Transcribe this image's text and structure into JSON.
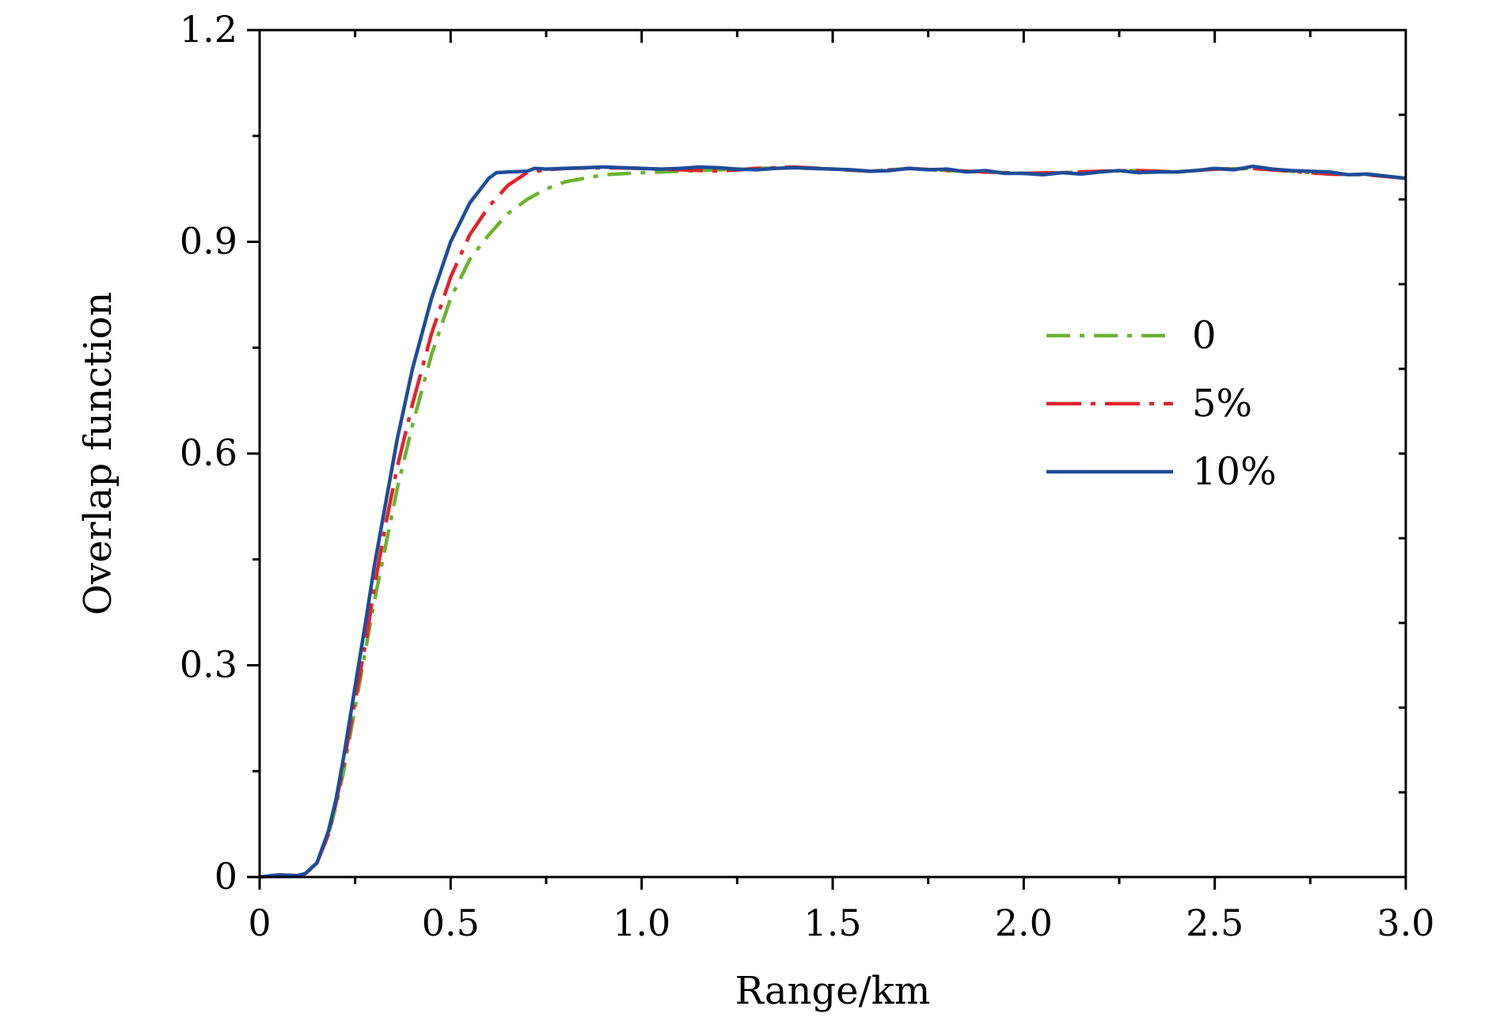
{
  "chart_data": {
    "type": "line",
    "xlabel": "Range/km",
    "ylabel": "Overlap function",
    "xlim": [
      0,
      3.0
    ],
    "ylim": [
      0,
      1.2
    ],
    "xticks": [
      "0",
      "0.5",
      "1.0",
      "1.5",
      "2.0",
      "2.5",
      "3.0"
    ],
    "yticks": [
      "0",
      "0.3",
      "0.6",
      "0.9",
      "1.2"
    ],
    "grid": false,
    "legend_position": "center-right",
    "series": [
      {
        "name": "0",
        "color": "#6ab42d",
        "dash": "dash-dot",
        "x": [
          0.0,
          0.05,
          0.1,
          0.12,
          0.15,
          0.18,
          0.2,
          0.22,
          0.25,
          0.28,
          0.3,
          0.33,
          0.36,
          0.4,
          0.45,
          0.5,
          0.55,
          0.6,
          0.65,
          0.7,
          0.75,
          0.8,
          0.85,
          0.9,
          1.0,
          1.1,
          1.2,
          1.3,
          1.4,
          1.5,
          1.6,
          1.7,
          1.8,
          1.9,
          2.0,
          2.1,
          2.2,
          2.3,
          2.4,
          2.5,
          2.6,
          2.7,
          2.8,
          2.9,
          3.0
        ],
        "y": [
          0.0,
          0.003,
          0.002,
          0.005,
          0.02,
          0.06,
          0.1,
          0.15,
          0.24,
          0.33,
          0.39,
          0.47,
          0.55,
          0.64,
          0.74,
          0.82,
          0.875,
          0.91,
          0.94,
          0.96,
          0.975,
          0.985,
          0.99,
          0.995,
          0.998,
          1.0,
          1.002,
          1.004,
          1.005,
          1.003,
          1.0,
          1.004,
          1.001,
          0.999,
          0.997,
          0.998,
          1.0,
          1.001,
          0.999,
          1.003,
          1.004,
          1.0,
          0.996,
          0.995,
          0.99
        ]
      },
      {
        "name": "5%",
        "color": "#e3232b",
        "dash": "long-dash-dot",
        "x": [
          0.0,
          0.05,
          0.1,
          0.12,
          0.15,
          0.18,
          0.2,
          0.22,
          0.25,
          0.28,
          0.3,
          0.33,
          0.36,
          0.4,
          0.45,
          0.5,
          0.55,
          0.6,
          0.65,
          0.7,
          0.75,
          0.8,
          0.9,
          1.0,
          1.1,
          1.2,
          1.3,
          1.4,
          1.5,
          1.6,
          1.7,
          1.8,
          1.9,
          2.0,
          2.1,
          2.2,
          2.3,
          2.4,
          2.5,
          2.6,
          2.7,
          2.8,
          2.9,
          3.0
        ],
        "y": [
          0.0,
          0.003,
          0.002,
          0.005,
          0.02,
          0.06,
          0.105,
          0.16,
          0.25,
          0.34,
          0.41,
          0.5,
          0.58,
          0.67,
          0.77,
          0.85,
          0.91,
          0.95,
          0.98,
          0.998,
          1.002,
          1.004,
          1.005,
          1.004,
          1.002,
          1.0,
          1.004,
          1.006,
          1.003,
          1.0,
          1.004,
          1.001,
          0.999,
          0.997,
          0.998,
          1.0,
          1.001,
          0.999,
          1.003,
          1.004,
          1.0,
          0.996,
          0.995,
          0.99
        ]
      },
      {
        "name": "10%",
        "color": "#1d4c9a",
        "dash": "solid",
        "x": [
          0.0,
          0.05,
          0.1,
          0.12,
          0.15,
          0.18,
          0.2,
          0.22,
          0.25,
          0.28,
          0.3,
          0.33,
          0.36,
          0.4,
          0.45,
          0.5,
          0.55,
          0.6,
          0.62,
          0.65,
          0.7,
          0.72,
          0.75,
          0.8,
          0.85,
          0.9,
          0.95,
          1.0,
          1.05,
          1.1,
          1.15,
          1.2,
          1.25,
          1.3,
          1.35,
          1.4,
          1.45,
          1.5,
          1.55,
          1.6,
          1.65,
          1.7,
          1.75,
          1.8,
          1.85,
          1.9,
          1.95,
          2.0,
          2.05,
          2.1,
          2.15,
          2.2,
          2.25,
          2.3,
          2.35,
          2.4,
          2.45,
          2.5,
          2.55,
          2.6,
          2.65,
          2.7,
          2.75,
          2.8,
          2.85,
          2.9,
          2.95,
          3.0
        ],
        "y": [
          0.0,
          0.003,
          0.002,
          0.005,
          0.02,
          0.065,
          0.11,
          0.17,
          0.27,
          0.37,
          0.44,
          0.53,
          0.62,
          0.72,
          0.82,
          0.9,
          0.955,
          0.99,
          0.998,
          0.999,
          1.0,
          1.004,
          1.003,
          1.004,
          1.005,
          1.006,
          1.005,
          1.004,
          1.003,
          1.004,
          1.006,
          1.005,
          1.003,
          1.002,
          1.004,
          1.005,
          1.004,
          1.003,
          1.002,
          1.0,
          1.001,
          1.004,
          1.002,
          1.003,
          0.999,
          1.001,
          0.997,
          0.997,
          0.995,
          0.998,
          0.996,
          0.999,
          1.001,
          0.998,
          0.999,
          0.999,
          1.001,
          1.004,
          1.002,
          1.007,
          1.003,
          1.001,
          1.0,
          0.999,
          0.995,
          0.996,
          0.993,
          0.99
        ]
      }
    ]
  }
}
